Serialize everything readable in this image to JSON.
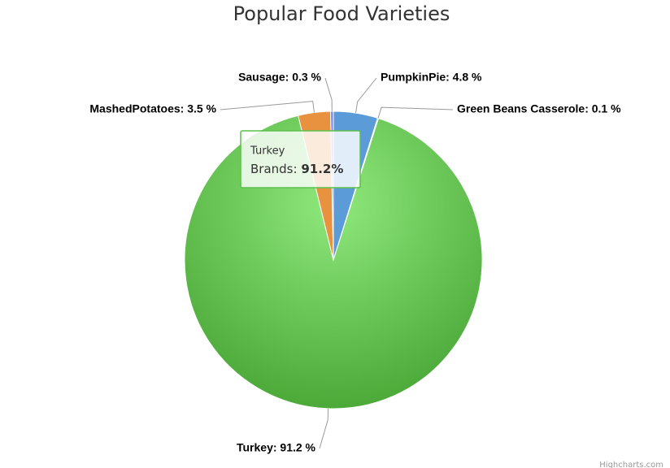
{
  "chart_data": {
    "type": "pie",
    "title": "Popular Food Varieties",
    "values": [
      4.8,
      0.1,
      91.2,
      3.5,
      0.3
    ],
    "value_labels": [
      "PumpkinPie: 4.8 %",
      "Green Beans Casserole: 0.1 %",
      "Turkey: 91.2 %",
      "MashedPotatoes: 3.5 %",
      "Sausage: 0.3 %"
    ],
    "colors": [
      "#5b9bd8",
      "#434348",
      "#5cbf4c",
      "#e8923f",
      "#8085e9"
    ],
    "tooltip": {
      "title": "Turkey",
      "label": "Brands:",
      "value": "91.2%"
    },
    "credits": "Highcharts.com"
  }
}
